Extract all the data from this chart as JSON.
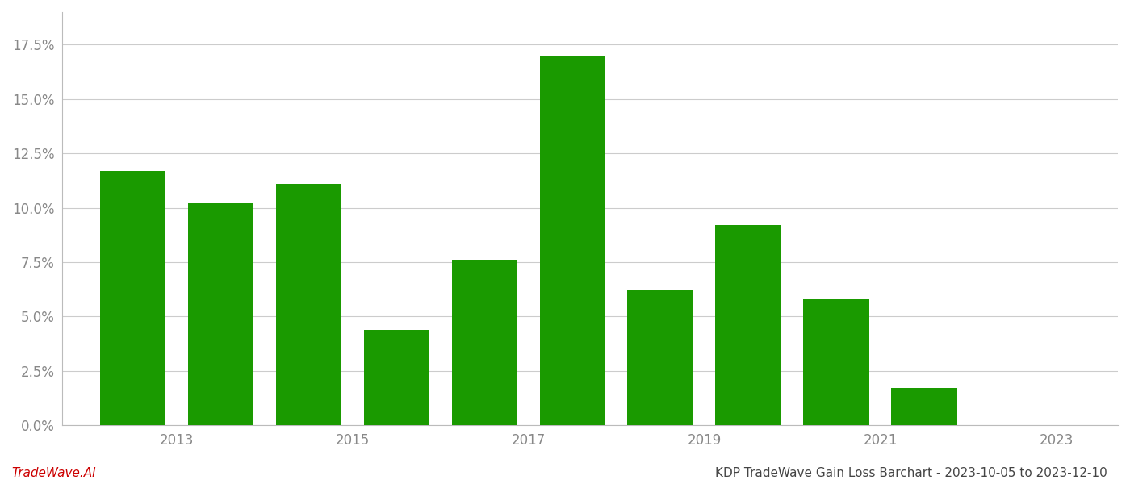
{
  "years": [
    2013,
    2014,
    2015,
    2016,
    2017,
    2018,
    2019,
    2020,
    2021,
    2022,
    2023
  ],
  "values": [
    0.117,
    0.102,
    0.111,
    0.044,
    0.076,
    0.17,
    0.062,
    0.092,
    0.058,
    0.017,
    0.0
  ],
  "bar_color": "#1a9a00",
  "title": "KDP TradeWave Gain Loss Barchart - 2023-10-05 to 2023-12-10",
  "watermark": "TradeWave.AI",
  "ylim": [
    0,
    0.19
  ],
  "yticks": [
    0.0,
    0.025,
    0.05,
    0.075,
    0.1,
    0.125,
    0.15,
    0.175
  ],
  "ytick_labels": [
    "0.0%",
    "2.5%",
    "5.0%",
    "7.5%",
    "10.0%",
    "12.5%",
    "15.0%",
    "17.5%"
  ],
  "background_color": "#ffffff",
  "grid_color": "#cccccc",
  "bar_width": 0.75,
  "title_fontsize": 11,
  "watermark_fontsize": 11,
  "tick_fontsize": 12,
  "tick_color": "#888888",
  "xtick_positions": [
    2013.5,
    2015.5,
    2017.5,
    2019.5,
    2021.5,
    2023.5
  ],
  "xtick_labels": [
    "2013",
    "2015",
    "2017",
    "2019",
    "2021",
    "2023"
  ]
}
